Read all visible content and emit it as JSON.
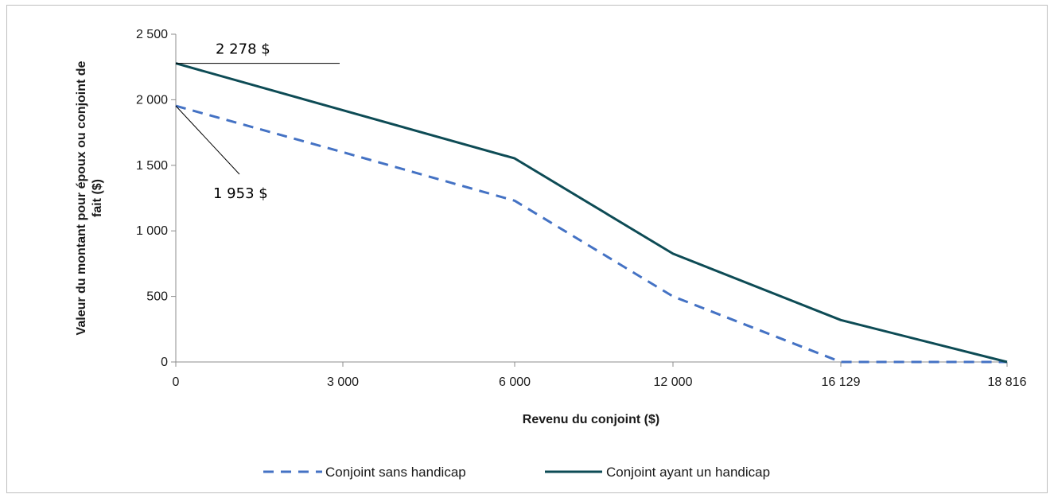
{
  "chart_data": {
    "type": "line",
    "xlabel": "Revenu du conjoint ($)",
    "ylabel": "Valeur du montant pour époux ou conjoint de fait ($)",
    "ylabel_lines": [
      "Valeur du montant pour époux ou conjoint de",
      "fait ($)"
    ],
    "categories": [
      "0",
      "3 000",
      "6 000",
      "12 000",
      "16 129",
      "18 816"
    ],
    "y_ticks": [
      "0",
      "500",
      "1 000",
      "1 500",
      "2 000",
      "2 500"
    ],
    "y_tick_values": [
      0,
      500,
      1000,
      1500,
      2000,
      2500
    ],
    "ylim": [
      0,
      2500
    ],
    "grid": false,
    "legend_position": "bottom",
    "series": [
      {
        "name": "Conjoint sans handicap",
        "values": [
          1953,
          1600,
          1230,
          500,
          0,
          0
        ],
        "color": "#4472c4",
        "style": "dashed"
      },
      {
        "name": "Conjoint ayant un handicap",
        "values": [
          2278,
          1920,
          1553,
          826,
          320,
          0
        ],
        "color": "#0d4b55",
        "style": "solid"
      }
    ],
    "annotations": [
      {
        "text": "2 278 $",
        "series": 1,
        "point": 0
      },
      {
        "text": "1 953 $",
        "series": 0,
        "point": 0
      }
    ]
  }
}
